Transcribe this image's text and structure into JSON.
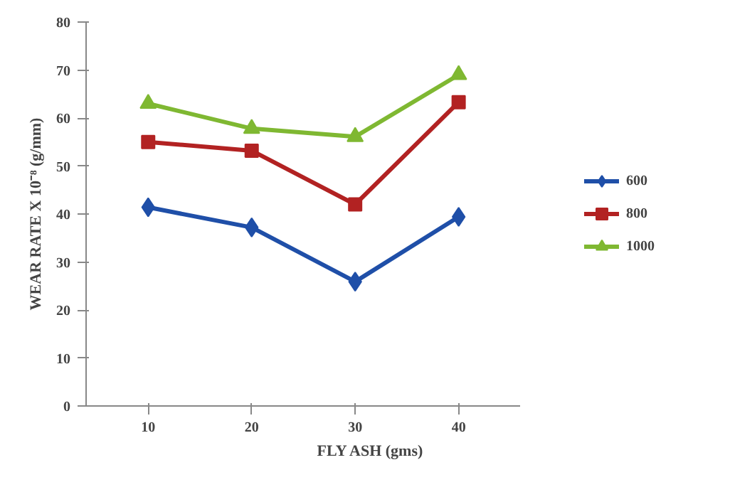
{
  "chart_data": {
    "type": "line",
    "xlabel": "FLY ASH (gms)",
    "ylabel": "WEAR RATE X 10⁻⁸ (g/mm)",
    "categories": [
      "10",
      "20",
      "30",
      "40"
    ],
    "series": [
      {
        "name": "600",
        "color": "#1f4fa8",
        "marker": "diamond",
        "values": [
          41.4,
          37.2,
          25.9,
          39.4
        ]
      },
      {
        "name": "800",
        "color": "#b22222",
        "marker": "square",
        "values": [
          55,
          53.2,
          42,
          63.3
        ]
      },
      {
        "name": "1000",
        "color": "#7fb832",
        "marker": "triangle",
        "values": [
          63,
          57.8,
          56.1,
          69
        ]
      }
    ],
    "ylim": [
      0,
      80
    ],
    "yticks": [
      0,
      10,
      20,
      30,
      40,
      50,
      60,
      70,
      80
    ],
    "legend": "right"
  }
}
